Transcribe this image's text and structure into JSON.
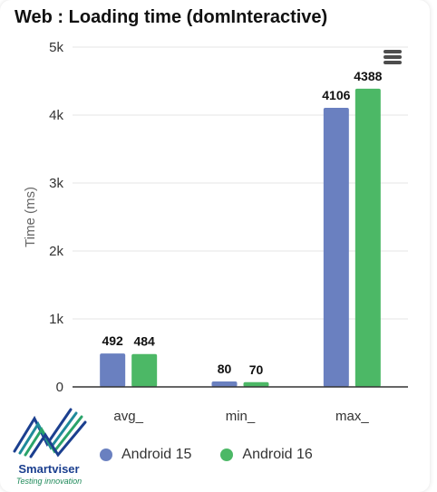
{
  "title": "Web : Loading time (domInteractive)",
  "menu_icon": "hamburger-menu-icon",
  "colors": {
    "series1": "#6a80c0",
    "series2": "#4cb866",
    "grid": "#e6e6e6",
    "axis": "#333333"
  },
  "logo": {
    "name": "Smartviser",
    "tagline": "Testing innovation"
  },
  "chart_data": {
    "type": "bar",
    "title": "Web : Loading time (domInteractive)",
    "xlabel": "",
    "ylabel": "Time (ms)",
    "categories": [
      "avg_",
      "min_",
      "max_"
    ],
    "series": [
      {
        "name": "Android 15",
        "values": [
          492,
          80,
          4106
        ]
      },
      {
        "name": "Android 16",
        "values": [
          484,
          70,
          4388
        ]
      }
    ],
    "ylim": [
      0,
      5000
    ],
    "yticks": [
      0,
      1000,
      2000,
      3000,
      4000,
      5000
    ],
    "ytick_labels": [
      "0",
      "1k",
      "2k",
      "3k",
      "4k",
      "5k"
    ],
    "grid": true,
    "legend": "bottom"
  }
}
